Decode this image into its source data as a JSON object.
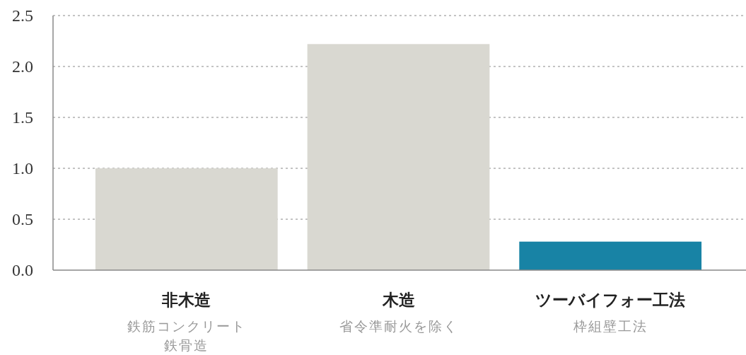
{
  "chart_data": {
    "type": "bar",
    "categories": [
      "非木造",
      "木造",
      "ツーバイフォー工法"
    ],
    "values": [
      1.0,
      2.22,
      0.28
    ],
    "colors": [
      "#d9d8d1",
      "#d9d8d1",
      "#1883a5"
    ],
    "annotations": [
      "鉄筋コンクリート鉄骨造",
      "省令準耐火を除く",
      "枠組壁工法"
    ],
    "ylim": [
      0,
      2.5
    ],
    "yticks": [
      {
        "value": 0,
        "label": "0.0"
      },
      0.5,
      {
        "value": 1,
        "label": "1.0"
      },
      1.5,
      {
        "value": 2,
        "label": "2.0"
      },
      2.5
    ],
    "grid": "y"
  }
}
